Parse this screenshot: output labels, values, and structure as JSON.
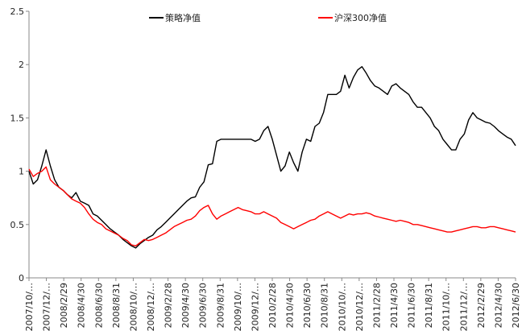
{
  "chart_data": {
    "type": "line",
    "title": "",
    "xlabel": "",
    "ylabel": "",
    "ylim": [
      0,
      2.5
    ],
    "yticks": [
      "0",
      "0.5",
      "1",
      "1.5",
      "2",
      "2.5"
    ],
    "grid": false,
    "legend_position": "top",
    "x_tick_labels": [
      "2007/10/…",
      "2007/12/…",
      "2008/2/29",
      "2008/4/30",
      "2008/6/30",
      "2008/8/31",
      "2008/10/…",
      "2008/12/…",
      "2009/2/28",
      "2009/4/30",
      "2009/6/30",
      "2009/8/31",
      "2009/10/…",
      "2009/12/…",
      "2010/2/28",
      "2010/4/30",
      "2010/6/30",
      "2010/8/31",
      "2010/10/…",
      "2010/12/…",
      "2011/2/28",
      "2011/4/30",
      "2011/6/30",
      "2011/8/31",
      "2011/10/…",
      "2011/12/…",
      "2012/2/29",
      "2012/4/30",
      "2012/6/30"
    ],
    "x": [
      "2007/10/15",
      "2007/11/1",
      "2007/11/15",
      "2007/12/1",
      "2007/12/15",
      "2008/1/1",
      "2008/1/15",
      "2008/2/1",
      "2008/2/15",
      "2008/3/1",
      "2008/3/15",
      "2008/4/1",
      "2008/4/15",
      "2008/5/1",
      "2008/5/15",
      "2008/6/1",
      "2008/6/15",
      "2008/7/1",
      "2008/7/15",
      "2008/8/1",
      "2008/8/15",
      "2008/9/1",
      "2008/9/15",
      "2008/10/1",
      "2008/10/15",
      "2008/11/1",
      "2008/11/15",
      "2008/12/1",
      "2008/12/15",
      "2009/1/1",
      "2009/1/15",
      "2009/2/1",
      "2009/2/15",
      "2009/3/1",
      "2009/3/15",
      "2009/4/1",
      "2009/4/15",
      "2009/5/1",
      "2009/5/15",
      "2009/6/1",
      "2009/6/15",
      "2009/7/1",
      "2009/7/15",
      "2009/8/1",
      "2009/8/15",
      "2009/9/1",
      "2009/9/15",
      "2009/10/1",
      "2009/10/15",
      "2009/11/1",
      "2009/11/15",
      "2009/12/1",
      "2009/12/15",
      "2010/1/1",
      "2010/1/15",
      "2010/2/1",
      "2010/2/15",
      "2010/3/1",
      "2010/3/15",
      "2010/4/1",
      "2010/4/15",
      "2010/5/1",
      "2010/5/15",
      "2010/6/1",
      "2010/6/15",
      "2010/7/1",
      "2010/7/15",
      "2010/8/1",
      "2010/8/15",
      "2010/9/1",
      "2010/9/15",
      "2010/10/1",
      "2010/10/15",
      "2010/11/1",
      "2010/11/15",
      "2010/12/1",
      "2010/12/15",
      "2011/1/1",
      "2011/1/15",
      "2011/2/1",
      "2011/2/15",
      "2011/3/1",
      "2011/3/15",
      "2011/4/1",
      "2011/4/15",
      "2011/5/1",
      "2011/5/15",
      "2011/6/1",
      "2011/6/15",
      "2011/7/1",
      "2011/7/15",
      "2011/8/1",
      "2011/8/15",
      "2011/9/1",
      "2011/9/15",
      "2011/10/1",
      "2011/10/15",
      "2011/11/1",
      "2011/11/15",
      "2011/12/1",
      "2011/12/15",
      "2012/1/1",
      "2012/1/15",
      "2012/2/1",
      "2012/2/15",
      "2012/3/1",
      "2012/3/15",
      "2012/4/1",
      "2012/4/15",
      "2012/5/1",
      "2012/5/15",
      "2012/6/1",
      "2012/6/15",
      "2012/7/1",
      "2012/7/15"
    ],
    "series": [
      {
        "name": "策略净值",
        "color": "#000000",
        "values": [
          1.0,
          0.88,
          0.92,
          1.05,
          1.2,
          1.05,
          0.92,
          0.85,
          0.82,
          0.78,
          0.75,
          0.8,
          0.72,
          0.7,
          0.68,
          0.6,
          0.58,
          0.54,
          0.5,
          0.46,
          0.43,
          0.4,
          0.36,
          0.33,
          0.3,
          0.28,
          0.32,
          0.35,
          0.38,
          0.4,
          0.45,
          0.48,
          0.52,
          0.56,
          0.6,
          0.64,
          0.68,
          0.72,
          0.75,
          0.76,
          0.85,
          0.9,
          1.06,
          1.07,
          1.28,
          1.3,
          1.3,
          1.3,
          1.3,
          1.3,
          1.3,
          1.3,
          1.3,
          1.28,
          1.3,
          1.38,
          1.42,
          1.3,
          1.15,
          1.0,
          1.05,
          1.18,
          1.08,
          1.0,
          1.18,
          1.3,
          1.28,
          1.42,
          1.45,
          1.55,
          1.72,
          1.72,
          1.72,
          1.75,
          1.9,
          1.78,
          1.88,
          1.95,
          1.98,
          1.92,
          1.85,
          1.8,
          1.78,
          1.75,
          1.72,
          1.8,
          1.82,
          1.78,
          1.75,
          1.72,
          1.65,
          1.6,
          1.6,
          1.55,
          1.5,
          1.42,
          1.38,
          1.3,
          1.25,
          1.2,
          1.2,
          1.3,
          1.35,
          1.48,
          1.55,
          1.5,
          1.48,
          1.46,
          1.45,
          1.42,
          1.38,
          1.35,
          1.32,
          1.3,
          1.24
        ]
      },
      {
        "name": "沪深300净值",
        "color": "#ff0000",
        "values": [
          1.02,
          0.95,
          0.98,
          1.0,
          1.04,
          0.92,
          0.88,
          0.85,
          0.82,
          0.78,
          0.74,
          0.72,
          0.7,
          0.66,
          0.6,
          0.55,
          0.52,
          0.5,
          0.46,
          0.44,
          0.42,
          0.4,
          0.37,
          0.35,
          0.31,
          0.3,
          0.33,
          0.36,
          0.35,
          0.36,
          0.38,
          0.4,
          0.42,
          0.45,
          0.48,
          0.5,
          0.52,
          0.54,
          0.55,
          0.58,
          0.63,
          0.66,
          0.68,
          0.6,
          0.55,
          0.58,
          0.6,
          0.62,
          0.64,
          0.66,
          0.64,
          0.63,
          0.62,
          0.6,
          0.6,
          0.62,
          0.6,
          0.58,
          0.56,
          0.52,
          0.5,
          0.48,
          0.46,
          0.48,
          0.5,
          0.52,
          0.54,
          0.55,
          0.58,
          0.6,
          0.62,
          0.6,
          0.58,
          0.56,
          0.58,
          0.6,
          0.59,
          0.6,
          0.6,
          0.61,
          0.6,
          0.58,
          0.57,
          0.56,
          0.55,
          0.54,
          0.53,
          0.54,
          0.53,
          0.52,
          0.5,
          0.5,
          0.49,
          0.48,
          0.47,
          0.46,
          0.45,
          0.44,
          0.43,
          0.43,
          0.44,
          0.45,
          0.46,
          0.47,
          0.48,
          0.48,
          0.47,
          0.47,
          0.48,
          0.48,
          0.47,
          0.46,
          0.45,
          0.44,
          0.43
        ]
      }
    ]
  }
}
